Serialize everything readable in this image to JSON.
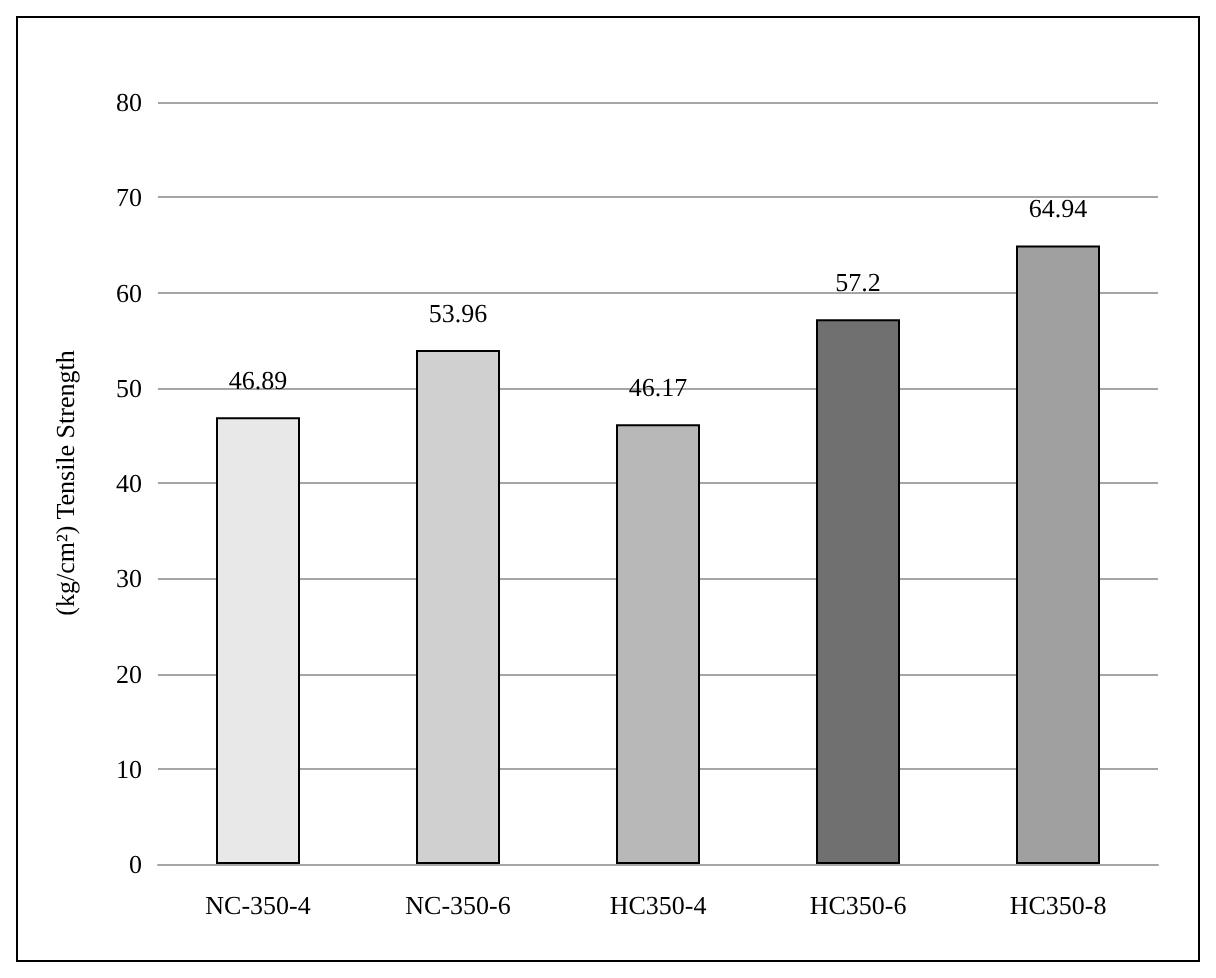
{
  "chart_data": {
    "type": "bar",
    "ylabel": "(kg/cm²) Tensile Strength",
    "categories": [
      "NC-350-4",
      "NC-350-6",
      "HC350-4",
      "HC350-6",
      "HC350-8"
    ],
    "values": [
      46.89,
      53.96,
      46.17,
      57.2,
      64.94
    ],
    "colors": [
      "#e8e8e8",
      "#d0d0d0",
      "#b8b8b8",
      "#707070",
      "#a0a0a0"
    ],
    "ylim": [
      0,
      80
    ],
    "yticks": [
      0,
      10,
      20,
      30,
      40,
      50,
      60,
      70,
      80
    ],
    "grid": "y",
    "data_labels": true
  }
}
